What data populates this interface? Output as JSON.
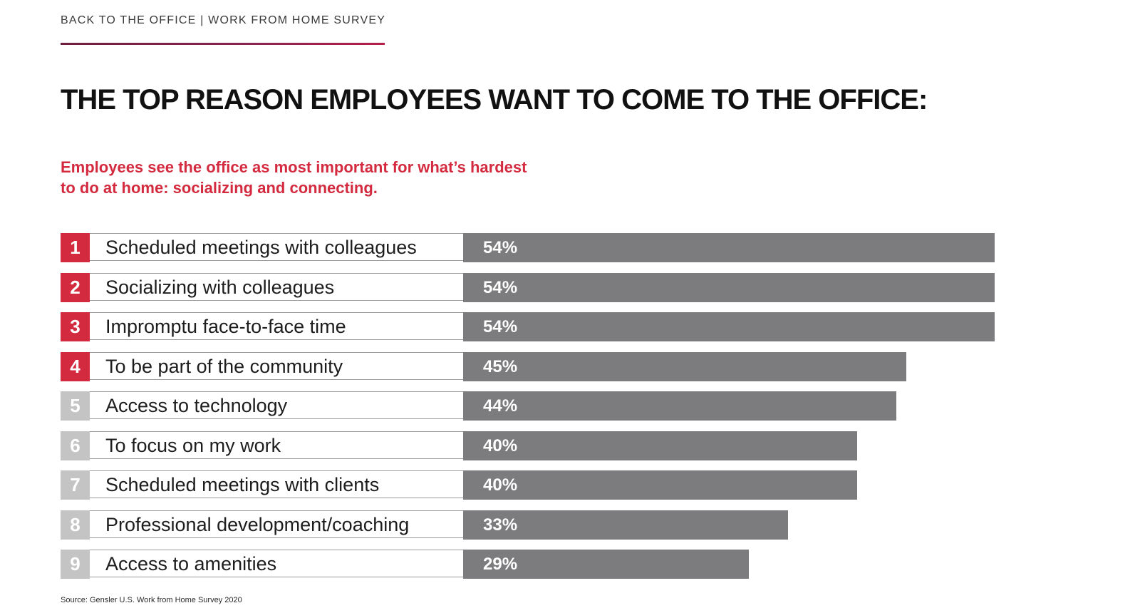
{
  "header": {
    "label": "BACK TO THE OFFICE | WORK FROM HOME SURVEY"
  },
  "title": "THE TOP REASON EMPLOYEES WANT TO COME TO THE OFFICE:",
  "subtitle": "Employees see the office as most important for what’s hardest to do at home: socializing and connecting.",
  "source": "Source: Gensler U.S. Work from Home Survey 2020",
  "colors": {
    "accent": "#d42a3f",
    "bar": "#7c7c7e",
    "rank_muted": "#c4c4c4"
  },
  "chart_data": {
    "type": "bar",
    "orientation": "horizontal",
    "title": "THE TOP REASON EMPLOYEES WANT TO COME TO THE OFFICE:",
    "xlim": [
      0,
      54
    ],
    "categories": [
      "Scheduled meetings with colleagues",
      "Socializing with colleagues",
      "Impromptu face-to-face time",
      "To be part of the community",
      "Access to technology",
      "To focus on my work",
      "Scheduled meetings with clients",
      "Professional development/coaching",
      "Access to amenities"
    ],
    "ranks": [
      "1",
      "2",
      "3",
      "4",
      "5",
      "6",
      "7",
      "8",
      "9"
    ],
    "values": [
      54,
      54,
      54,
      45,
      44,
      40,
      40,
      33,
      29
    ],
    "value_labels": [
      "54%",
      "54%",
      "54%",
      "45%",
      "44%",
      "40%",
      "40%",
      "33%",
      "29%"
    ],
    "highlighted_ranks": 4
  }
}
